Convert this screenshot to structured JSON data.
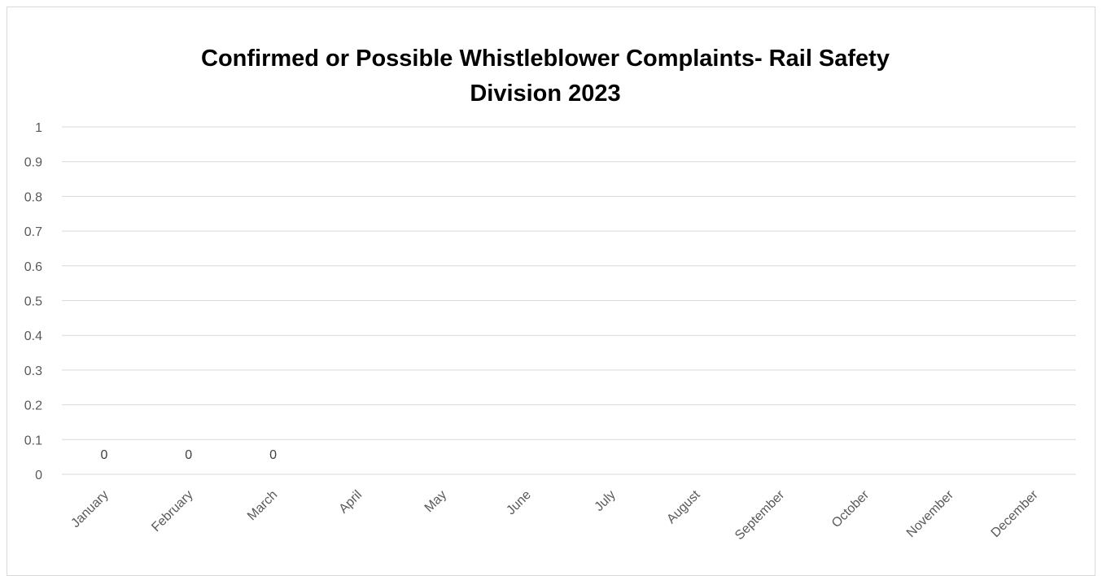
{
  "chart_data": {
    "type": "bar",
    "title": "Confirmed or Possible Whistleblower Complaints- Rail Safety Division 2023",
    "title_lines": [
      "Confirmed or Possible Whistleblower Complaints- Rail Safety",
      "Division 2023"
    ],
    "xlabel": "",
    "ylabel": "",
    "categories": [
      "January",
      "February",
      "March",
      "April",
      "May",
      "June",
      "July",
      "August",
      "September",
      "October",
      "November",
      "December"
    ],
    "values": [
      0,
      0,
      0,
      null,
      null,
      null,
      null,
      null,
      null,
      null,
      null,
      null
    ],
    "data_labels": [
      "0",
      "0",
      "0",
      "",
      "",
      "",
      "",
      "",
      "",
      "",
      "",
      ""
    ],
    "ylim": [
      0,
      1
    ],
    "y_ticks": [
      "0",
      "0.1",
      "0.2",
      "0.3",
      "0.4",
      "0.5",
      "0.6",
      "0.7",
      "0.8",
      "0.9",
      "1"
    ],
    "grid": true,
    "legend": "none",
    "colors": {
      "gridline": "#d9d9d9",
      "tick_text": "#595959",
      "title": "#000000"
    }
  }
}
